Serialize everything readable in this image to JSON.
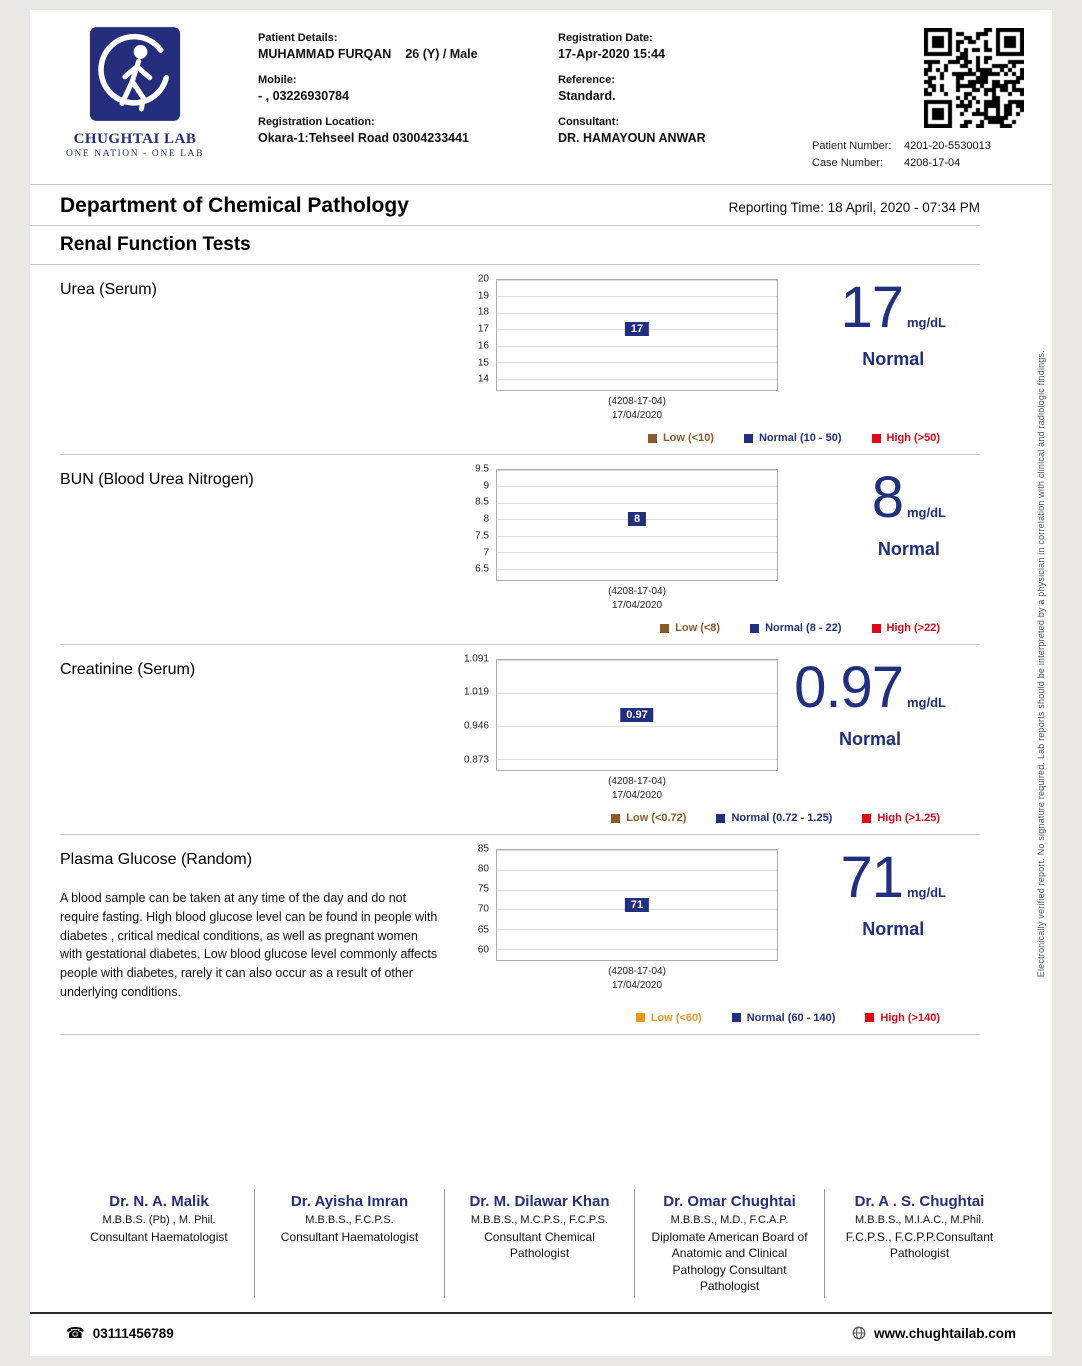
{
  "colors": {
    "navy": "#202f80",
    "red": "#e30613",
    "brown": "#8a5a2b",
    "orange": "#f7941d",
    "page_bg": "#e9e8e5"
  },
  "header": {
    "logo": {
      "title": "CHUGHTAI LAB",
      "tagline": "ONE NATION - ONE LAB"
    },
    "patient": {
      "label": "Patient Details:",
      "name": "MUHAMMAD FURQAN",
      "age_sex": "26 (Y) / Male"
    },
    "mobile": {
      "label": "Mobile:",
      "value": "- , 03226930784"
    },
    "reg_location": {
      "label": "Registration Location:",
      "value": "Okara-1:Tehseel Road 03004233441"
    },
    "reg_date": {
      "label": "Registration Date:",
      "value": "17-Apr-2020 15:44"
    },
    "reference": {
      "label": "Reference:",
      "value": "Standard."
    },
    "consultant": {
      "label": "Consultant:",
      "value": "DR. HAMAYOUN ANWAR"
    },
    "patient_number": {
      "label": "Patient Number:",
      "value": "4201-20-5530013"
    },
    "case_number": {
      "label": "Case Number:",
      "value": "4208-17-04"
    }
  },
  "report": {
    "department": "Department of Chemical Pathology",
    "reporting_time_label": "Reporting Time:",
    "reporting_time_value": "18 April, 2020 - 07:34 PM",
    "panel_title": "Renal Function Tests"
  },
  "side_note": "Electronically verified report. No signature required. Lab reports should be interpreted by a physician in correlation with clinical and radiologic findings.",
  "chart_data": [
    {
      "type": "line",
      "title": "Urea (Serum)",
      "value": 17,
      "value_label": "17",
      "unit": "mg/dL",
      "status": "Normal",
      "yticks": [
        "20",
        "19",
        "18",
        "17",
        "16",
        "15",
        "14"
      ],
      "ylim": [
        13.3,
        20
      ],
      "x_labels": [
        "(4208-17-04)",
        "17/04/2020"
      ],
      "legend": [
        {
          "label": "Low (<10)",
          "color": "#8a5a2b"
        },
        {
          "label": "Normal (10 - 50)",
          "color": "#202f80"
        },
        {
          "label": "High (>50)",
          "color": "#e30613"
        }
      ]
    },
    {
      "type": "line",
      "title": "BUN (Blood Urea Nitrogen)",
      "value": 8,
      "value_label": "8",
      "unit": "mg/dL",
      "status": "Normal",
      "yticks": [
        "9.5",
        "9",
        "8.5",
        "8",
        "7.5",
        "7",
        "6.5"
      ],
      "ylim": [
        6.15,
        9.5
      ],
      "x_labels": [
        "(4208-17-04)",
        "17/04/2020"
      ],
      "legend": [
        {
          "label": "Low (<8)",
          "color": "#8a5a2b"
        },
        {
          "label": "Normal (8 - 22)",
          "color": "#202f80"
        },
        {
          "label": "High (>22)",
          "color": "#e30613"
        }
      ]
    },
    {
      "type": "line",
      "title": "Creatinine (Serum)",
      "value": 0.97,
      "value_label": "0.97",
      "unit": "mg/dL",
      "status": "Normal",
      "yticks": [
        "1.091",
        "1.019",
        "0.946",
        "0.873"
      ],
      "ylim": [
        0.8485,
        1.091
      ],
      "x_labels": [
        "(4208-17-04)",
        "17/04/2020"
      ],
      "legend": [
        {
          "label": "Low (<0.72)",
          "color": "#8a5a2b"
        },
        {
          "label": "Normal (0.72 - 1.25)",
          "color": "#202f80"
        },
        {
          "label": "High (>1.25)",
          "color": "#e30613"
        }
      ]
    },
    {
      "type": "line",
      "title": "Plasma Glucose (Random)",
      "description": "A blood sample can be taken at any time of the day and do not require fasting. High blood glucose level can be found in people with diabetes , critical medical conditions, as well as pregnant women with gestational diabetes. Low blood glucose level commonly affects people with diabetes, rarely it can also occur as a result of other underlying conditions.",
      "value": 71,
      "value_label": "71",
      "unit": "mg/dL",
      "status": "Normal",
      "yticks": [
        "85",
        "80",
        "75",
        "70",
        "65",
        "60"
      ],
      "ylim": [
        57.2,
        85
      ],
      "x_labels": [
        "(4208-17-04)",
        "17/04/2020"
      ],
      "legend": [
        {
          "label": "Low (<60)",
          "color": "#f7941d"
        },
        {
          "label": "Normal (60 - 140)",
          "color": "#202f80"
        },
        {
          "label": "High (>140)",
          "color": "#e30613"
        }
      ]
    }
  ],
  "footer": {
    "doctors": [
      {
        "name": "Dr. N. A. Malik",
        "quals": "M.B.B.S. (Pb) , M. Phil.",
        "title": "Consultant Haematologist"
      },
      {
        "name": "Dr. Ayisha Imran",
        "quals": "M.B.B.S., F.C.P.S.",
        "title": "Consultant Haematologist"
      },
      {
        "name": "Dr. M. Dilawar Khan",
        "quals": "M.B.B.S., M.C.P.S., F.C.P.S.",
        "title": "Consultant Chemical Pathologist"
      },
      {
        "name": "Dr. Omar Chughtai",
        "quals": "M.B.B.S., M.D., F.C.A.P.",
        "title": "Diplomate American Board of Anatomic and Clinical Pathology Consultant Pathologist"
      },
      {
        "name": "Dr. A . S. Chughtai",
        "quals": "M.B.B.S., M.I.A.C., M.Phil.",
        "title": "F.C.P.S., F.C.P.P.Consultant Pathologist"
      }
    ],
    "phone": "03111456789",
    "website": "www.chughtailab.com"
  }
}
